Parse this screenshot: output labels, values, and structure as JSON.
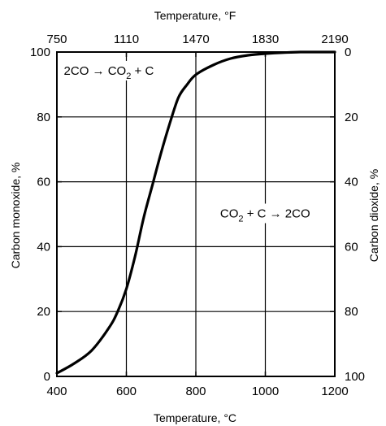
{
  "chart_data": {
    "type": "line",
    "title": "",
    "xlabel": "Temperature, °C",
    "x2label": "Temperature, °F",
    "ylabel": "Carbon monoxide, %",
    "y2label": "Carbon dioxide, %",
    "xlim": [
      400,
      1200
    ],
    "ylim": [
      0,
      100
    ],
    "x_ticks": [
      400,
      600,
      800,
      1000,
      1200
    ],
    "y_ticks": [
      0,
      20,
      40,
      60,
      80,
      100
    ],
    "x2_tick_labels": [
      "750",
      "1110",
      "1470",
      "1830",
      "2190"
    ],
    "y2_tick_labels": [
      "100",
      "80",
      "60",
      "40",
      "20",
      "0"
    ],
    "grid": true,
    "series": [
      {
        "name": "",
        "color": "#000000",
        "x": [
          400,
          450,
          500,
          550,
          575,
          600,
          625,
          650,
          675,
          700,
          725,
          750,
          775,
          800,
          850,
          900,
          950,
          1000,
          1050,
          1100,
          1150,
          1200
        ],
        "y": [
          1,
          4,
          8,
          15,
          20,
          27,
          37,
          49,
          59,
          69,
          78,
          86,
          90,
          93,
          96,
          98,
          99,
          99.5,
          99.8,
          100,
          100,
          100
        ]
      }
    ],
    "annotations": [
      {
        "id": "reaction-forward",
        "parts": [
          "2CO → CO",
          "2",
          " + C"
        ],
        "x": 420,
        "y": 93
      },
      {
        "id": "reaction-reverse",
        "parts": [
          "CO",
          "2",
          " + C → 2CO"
        ],
        "x": 870,
        "y": 49
      }
    ]
  }
}
